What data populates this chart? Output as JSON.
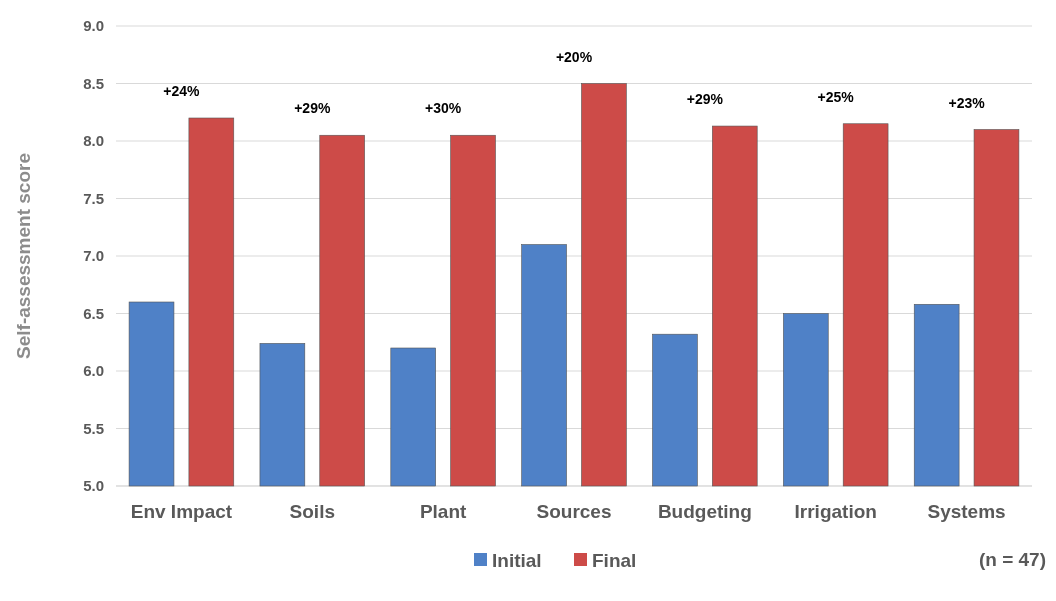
{
  "chart_data": {
    "type": "bar",
    "ylabel": "Self-assessment score",
    "categories": [
      "Env Impact",
      "Soils",
      "Plant",
      "Sources",
      "Budgeting",
      "Irrigation",
      "Systems"
    ],
    "series": [
      {
        "name": "Initial",
        "color": "#4f81c7",
        "values": [
          6.6,
          6.24,
          6.2,
          7.1,
          6.32,
          6.5,
          6.58
        ]
      },
      {
        "name": "Final",
        "color": "#cd4b48",
        "values": [
          8.2,
          8.05,
          8.05,
          8.5,
          8.13,
          8.15,
          8.1
        ]
      }
    ],
    "ylim": [
      5,
      9
    ],
    "yticks": [
      {
        "value": 5,
        "label": "5.0"
      },
      {
        "value": 5.5,
        "label": "5.5"
      },
      {
        "value": 6,
        "label": "6.0"
      },
      {
        "value": 6.5,
        "label": "6.5"
      },
      {
        "value": 7,
        "label": "7.0"
      },
      {
        "value": 7.5,
        "label": "7.5"
      },
      {
        "value": 8,
        "label": "8.0"
      },
      {
        "value": 8.5,
        "label": "8.5"
      },
      {
        "value": 9,
        "label": "9.0"
      }
    ],
    "grid": "y",
    "legend": "bottom",
    "annotations": [
      "+24%",
      "+29%",
      "+30%",
      "+20%",
      "+29%",
      "+25%",
      "+23%",
      "(n = 47)"
    ]
  }
}
